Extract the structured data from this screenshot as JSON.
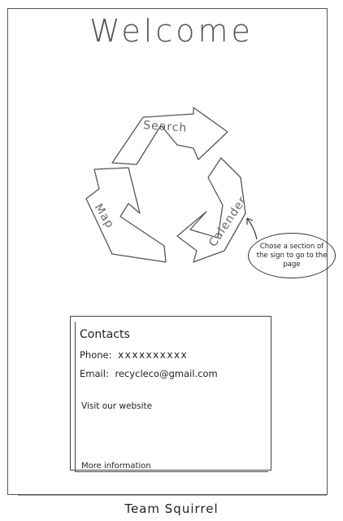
{
  "header": {
    "title": "Welcome"
  },
  "recycle_nav": {
    "segments": [
      {
        "label": "Search"
      },
      {
        "label": "Map"
      },
      {
        "label": "Calender"
      }
    ],
    "hint": "Chose a section of the sign to go to the page"
  },
  "contacts": {
    "heading": "Contacts",
    "phone_label": "Phone:",
    "phone_value": "xxxxxxxxxx",
    "email_label": "Email:",
    "email_value": "recycleco@gmail.com",
    "website_link": "Visit our website",
    "more_link": "More information"
  },
  "footer": {
    "text": "Team Squirrel"
  }
}
